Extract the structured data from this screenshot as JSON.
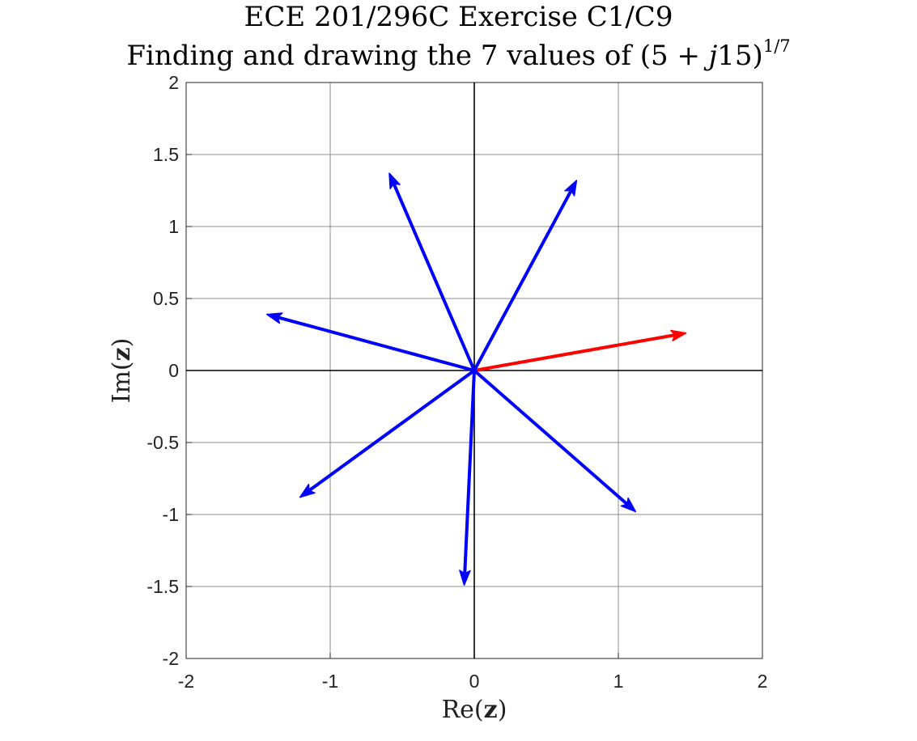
{
  "chart_data": {
    "type": "vector",
    "title_line1": "ECE 201/296C Exercise C1/C9",
    "title_line2_prefix": "Finding and drawing the 7 values of (5 + ",
    "title_line2_j": "j",
    "title_line2_mid": "15)",
    "title_line2_exponent": "1/7",
    "xlabel": "Re(z)",
    "ylabel": "Im(z)",
    "xlim": [
      -2,
      2
    ],
    "ylim": [
      -2,
      2
    ],
    "xticks": [
      "-2",
      "-1",
      "0",
      "1",
      "2"
    ],
    "yticks": [
      "2",
      "1.5",
      "1",
      "0.5",
      "0",
      "-0.5",
      "-1",
      "-1.5",
      "-2"
    ],
    "grid": true,
    "colors": {
      "principal": "#ff0000",
      "other": "#0000ff",
      "axes": "#000000",
      "grid": "#8c8c8c"
    },
    "vectors": [
      {
        "x": 1.47,
        "y": 0.26,
        "color": "#ff0000"
      },
      {
        "x": 0.71,
        "y": 1.32,
        "color": "#0000ff"
      },
      {
        "x": -0.59,
        "y": 1.37,
        "color": "#0000ff"
      },
      {
        "x": -1.44,
        "y": 0.39,
        "color": "#0000ff"
      },
      {
        "x": -1.21,
        "y": -0.88,
        "color": "#0000ff"
      },
      {
        "x": -0.07,
        "y": -1.49,
        "color": "#0000ff"
      },
      {
        "x": 1.12,
        "y": -0.98,
        "color": "#0000ff"
      }
    ]
  }
}
